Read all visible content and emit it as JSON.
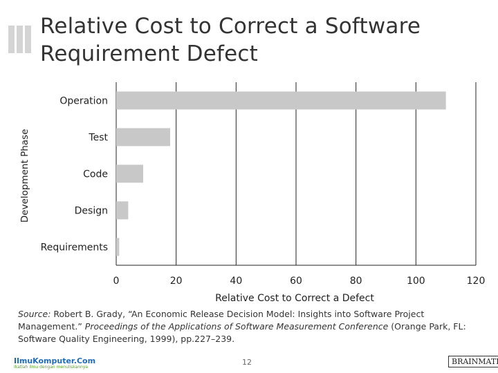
{
  "slide": {
    "title_line1": "Relative Cost to Correct a Software",
    "title_line2": "Requirement Defect",
    "source_label": "Source:",
    "source_text": "Robert B. Grady, “An Economic Release Decision Model: Insights into Software Project Management.”",
    "source_italic": "Proceedings of the Applications of Software Measurement Conference",
    "source_rest": "(Orange Park, FL: Software Quality Engineering, 1999), pp.227–239.",
    "page_number": "12",
    "logo_left": "IlmuKomputer.Com",
    "logo_left_sub": "Ikatlah ilmu dengan menuliskannya",
    "logo_right": "BRAINMATICS"
  },
  "colors": {
    "bar": "#c8c8c8",
    "grid": "#222222",
    "deco": "#d4d4d4"
  },
  "chart_data": {
    "type": "bar",
    "orientation": "horizontal",
    "categories": [
      "Operation",
      "Test",
      "Code",
      "Design",
      "Requirements"
    ],
    "values": [
      110,
      18,
      9,
      4,
      1
    ],
    "xlabel": "Relative Cost to Correct a Defect",
    "ylabel": "Development Phase",
    "xlim": [
      0,
      120
    ],
    "xticks": [
      0,
      20,
      40,
      60,
      80,
      100,
      120
    ],
    "grid": true
  }
}
